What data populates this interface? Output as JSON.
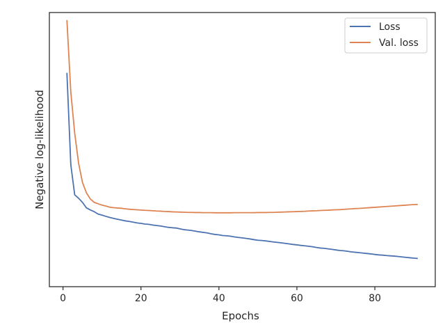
{
  "chart_data": {
    "type": "line",
    "title": "",
    "xlabel": "Epochs",
    "ylabel": "Negative log-likelihood",
    "xlim": [
      -3.5,
      95.5
    ],
    "ylim": [
      -1.0,
      19.0
    ],
    "x_ticks": [
      0,
      20,
      40,
      60,
      80
    ],
    "y_ticks_visible": false,
    "grid": false,
    "legend_position": "top-right",
    "series": [
      {
        "name": "Loss",
        "color": "#4c72b0",
        "x": [
          1,
          2,
          3,
          4,
          5,
          6,
          7,
          8,
          9,
          10,
          11,
          12,
          13,
          14,
          15,
          16,
          17,
          18,
          19,
          20,
          21,
          22,
          23,
          24,
          25,
          26,
          27,
          28,
          29,
          30,
          31,
          32,
          33,
          34,
          35,
          36,
          37,
          38,
          39,
          40,
          41,
          42,
          43,
          44,
          45,
          46,
          47,
          48,
          49,
          50,
          51,
          52,
          53,
          54,
          55,
          56,
          57,
          58,
          59,
          60,
          61,
          62,
          63,
          64,
          65,
          66,
          67,
          68,
          69,
          70,
          71,
          72,
          73,
          74,
          75,
          76,
          77,
          78,
          79,
          80,
          81,
          82,
          83,
          84,
          85,
          86,
          87,
          88,
          89,
          90,
          91
        ],
        "values": [
          14.6,
          7.9,
          5.7,
          5.45,
          5.15,
          4.75,
          4.6,
          4.47,
          4.3,
          4.22,
          4.13,
          4.05,
          3.98,
          3.92,
          3.86,
          3.8,
          3.76,
          3.71,
          3.65,
          3.62,
          3.57,
          3.55,
          3.5,
          3.46,
          3.43,
          3.38,
          3.33,
          3.3,
          3.28,
          3.22,
          3.16,
          3.13,
          3.1,
          3.05,
          3.0,
          2.96,
          2.92,
          2.86,
          2.81,
          2.78,
          2.73,
          2.71,
          2.68,
          2.63,
          2.59,
          2.56,
          2.52,
          2.48,
          2.43,
          2.39,
          2.37,
          2.34,
          2.3,
          2.26,
          2.23,
          2.2,
          2.16,
          2.12,
          2.08,
          2.05,
          2.01,
          1.98,
          1.95,
          1.91,
          1.86,
          1.82,
          1.8,
          1.76,
          1.72,
          1.68,
          1.64,
          1.62,
          1.58,
          1.54,
          1.51,
          1.48,
          1.45,
          1.42,
          1.39,
          1.35,
          1.32,
          1.3,
          1.27,
          1.25,
          1.23,
          1.2,
          1.17,
          1.14,
          1.11,
          1.08,
          1.06
        ]
      },
      {
        "name": "Val. loss",
        "color": "#dd8452",
        "x": [
          1,
          2,
          3,
          4,
          5,
          6,
          7,
          8,
          9,
          10,
          11,
          12,
          13,
          14,
          15,
          16,
          17,
          18,
          19,
          20,
          21,
          22,
          23,
          24,
          25,
          26,
          27,
          28,
          29,
          30,
          31,
          32,
          33,
          34,
          35,
          36,
          37,
          38,
          39,
          40,
          41,
          42,
          43,
          44,
          45,
          46,
          47,
          48,
          49,
          50,
          51,
          52,
          53,
          54,
          55,
          56,
          57,
          58,
          59,
          60,
          61,
          62,
          63,
          64,
          65,
          66,
          67,
          68,
          69,
          70,
          71,
          72,
          73,
          74,
          75,
          76,
          77,
          78,
          79,
          80,
          81,
          82,
          83,
          84,
          85,
          86,
          87,
          88,
          89,
          90,
          91
        ],
        "values": [
          18.45,
          13.2,
          10.2,
          8.0,
          6.6,
          5.85,
          5.4,
          5.15,
          5.05,
          4.95,
          4.88,
          4.8,
          4.76,
          4.74,
          4.72,
          4.68,
          4.65,
          4.63,
          4.61,
          4.59,
          4.57,
          4.56,
          4.54,
          4.52,
          4.51,
          4.49,
          4.48,
          4.46,
          4.45,
          4.44,
          4.43,
          4.42,
          4.42,
          4.41,
          4.41,
          4.4,
          4.4,
          4.4,
          4.39,
          4.39,
          4.39,
          4.39,
          4.39,
          4.4,
          4.4,
          4.4,
          4.4,
          4.4,
          4.4,
          4.41,
          4.41,
          4.41,
          4.42,
          4.42,
          4.43,
          4.44,
          4.45,
          4.46,
          4.47,
          4.48,
          4.49,
          4.5,
          4.52,
          4.53,
          4.54,
          4.56,
          4.57,
          4.58,
          4.6,
          4.61,
          4.62,
          4.64,
          4.66,
          4.68,
          4.7,
          4.71,
          4.73,
          4.75,
          4.77,
          4.79,
          4.81,
          4.83,
          4.85,
          4.87,
          4.89,
          4.91,
          4.93,
          4.95,
          4.97,
          4.99,
          5.0
        ]
      }
    ]
  }
}
